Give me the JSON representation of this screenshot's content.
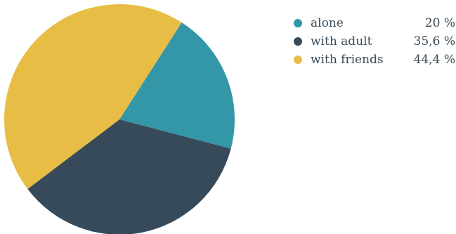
{
  "chart_data": {
    "type": "pie",
    "title": "",
    "legend_position": "top-right",
    "series": [
      {
        "name": "alone",
        "value": 20,
        "value_label": "20 %",
        "color": "#3497a8"
      },
      {
        "name": "with adult",
        "value": 35.6,
        "value_label": "35,6 %",
        "color": "#374a5a"
      },
      {
        "name": "with friends",
        "value": 44.4,
        "value_label": "44,4 %",
        "color": "#e7bd45"
      }
    ]
  }
}
